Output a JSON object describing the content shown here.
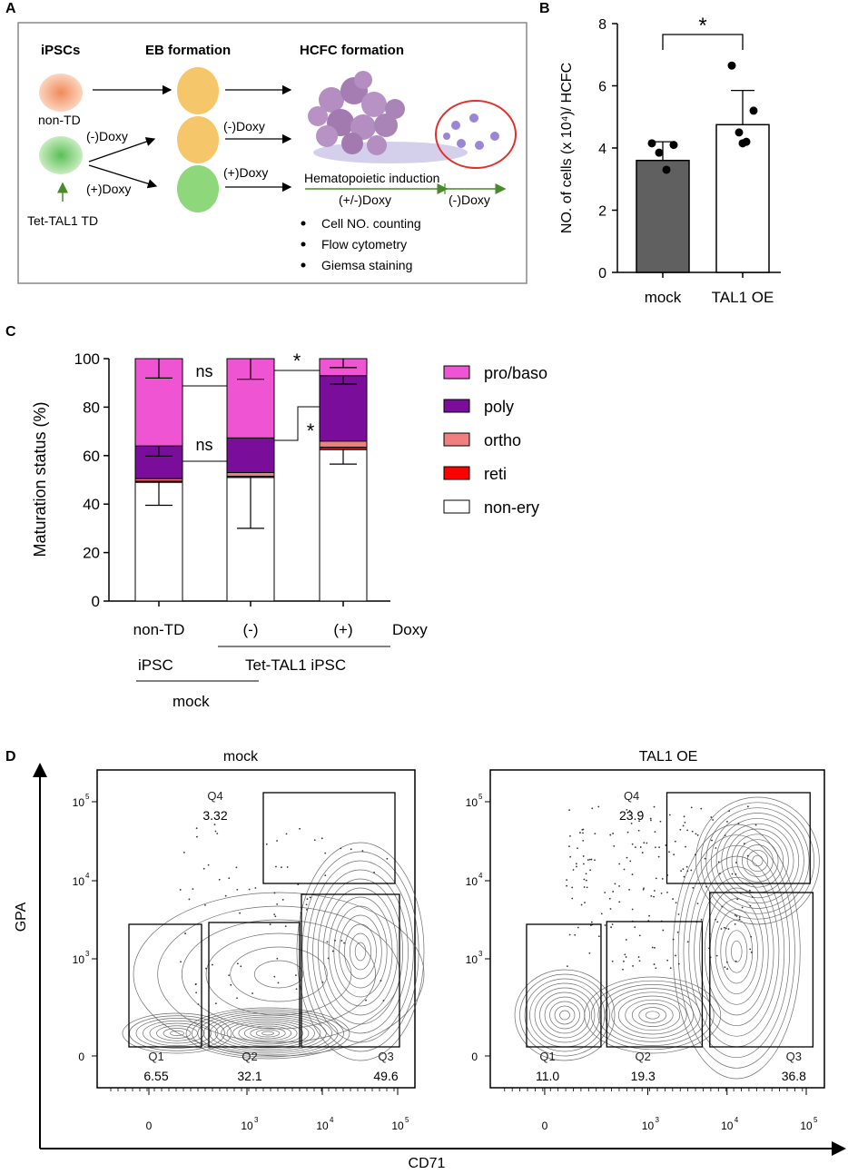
{
  "panel_labels": {
    "a": "A",
    "b": "B",
    "c": "C",
    "d": "D"
  },
  "panel_a": {
    "headers": [
      "iPSCs",
      "EB formation",
      "HCFC formation"
    ],
    "non_td_label": "non-TD",
    "tet_label": "Tet-TAL1 TD",
    "arrow_minus_doxy_1": "(-)Doxy",
    "arrow_plus_doxy_1": "(+)Doxy",
    "arrow_minus_doxy_2": "(-)Doxy",
    "arrow_plus_doxy_2": "(+)Doxy",
    "induction_label": "Hematopoietic induction",
    "induction_doxy": "(+/-)Doxy",
    "after_doxy": "(-)Doxy",
    "readouts": [
      "Cell NO. counting",
      "Flow cytometry",
      "Giemsa staining"
    ],
    "colors": {
      "non_td": "#f5a97f",
      "tet": "#8fd68a",
      "eb_yellow": "#f6c66a",
      "eb_green": "#8ed77a",
      "hcfc": "#b48ec0",
      "red_circle": "#e0302a",
      "arrow_green": "#4a8a2a"
    }
  },
  "chart_data": [
    {
      "type": "bar",
      "panel": "B",
      "categories": [
        "mock",
        "TAL1 OE"
      ],
      "values": [
        3.6,
        4.75
      ],
      "error_sd": [
        0.6,
        1.1
      ],
      "points": [
        [
          4.15,
          4.1,
          3.85,
          3.3
        ],
        [
          6.65,
          5.2,
          4.5,
          4.2,
          4.15
        ]
      ],
      "bar_colors": [
        "#606060",
        "#ffffff"
      ],
      "ylabel": "NO. of cells (x 10⁴)/ HCFC",
      "ylim": [
        0,
        8
      ],
      "yticks": [
        "0",
        "2",
        "4",
        "6",
        "8"
      ],
      "significance": "*"
    },
    {
      "type": "bar",
      "panel": "C",
      "stacked": true,
      "categories": [
        "non-TD",
        "(-)",
        "(+)"
      ],
      "x_suffix": "Doxy",
      "group_labels": [
        "iPSC",
        "Tet-TAL1 iPSC",
        "mock"
      ],
      "series": [
        {
          "name": "non-ery",
          "color": "#ffffff",
          "values": [
            49,
            51,
            62.5
          ],
          "err_low": [
            39.5,
            30,
            56.5
          ]
        },
        {
          "name": "reti",
          "color": "#ff0000",
          "values": [
            0.5,
            0.5,
            1
          ]
        },
        {
          "name": "ortho",
          "color": "#f08080",
          "values": [
            1,
            1.5,
            2.5
          ]
        },
        {
          "name": "poly",
          "color": "#7a0d99",
          "values": [
            13.5,
            14.3,
            27
          ]
        },
        {
          "name": "pro/baso",
          "color": "#ef54d2",
          "values": [
            36,
            32.7,
            7
          ]
        }
      ],
      "poly_top_err": [
        59.8,
        null,
        89.5
      ],
      "top_err": [
        92,
        91.5,
        96.3
      ],
      "ylabel": "Maturation status (%)",
      "ylim": [
        0,
        100
      ],
      "yticks": [
        "0",
        "20",
        "40",
        "60",
        "80",
        "100"
      ],
      "legend_order": [
        "pro/baso",
        "poly",
        "ortho",
        "reti",
        "non-ery"
      ],
      "sig_labels": [
        "ns",
        "ns",
        "*",
        "*"
      ]
    },
    {
      "type": "scatter",
      "panel": "D",
      "plots": [
        {
          "title": "mock",
          "q1": "6.55",
          "q2": "32.1",
          "q3": "49.6",
          "q4": "3.32"
        },
        {
          "title": "TAL1 OE",
          "q1": "11.0",
          "q2": "19.3",
          "q3": "36.8",
          "q4": "23.9"
        }
      ],
      "quadrant_names": [
        "Q1",
        "Q2",
        "Q3",
        "Q4"
      ],
      "xlabel": "CD71",
      "ylabel": "GPA",
      "x_ticks": [
        "0",
        "10",
        "10",
        "10"
      ],
      "x_tick_exps": [
        "",
        "3",
        "4",
        "5"
      ],
      "y_ticks": [
        "10",
        "10",
        "10",
        "0"
      ],
      "y_tick_exps": [
        "5",
        "4",
        "3",
        ""
      ]
    }
  ]
}
